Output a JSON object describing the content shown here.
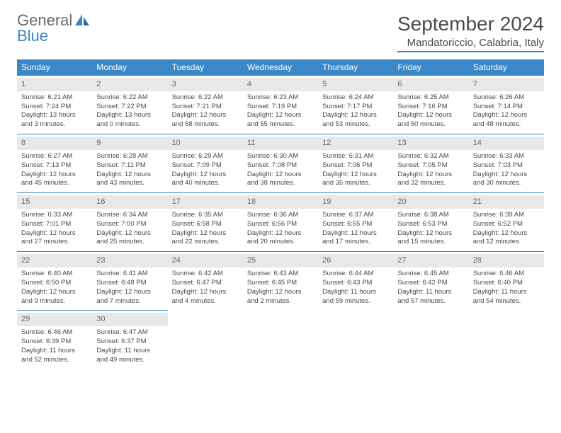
{
  "logo": {
    "text1": "General",
    "text2": "Blue"
  },
  "title": "September 2024",
  "location": "Mandatoriccio, Calabria, Italy",
  "colors": {
    "accent": "#3b87c8",
    "header_bg": "#3b87c8",
    "daynum_bg": "#e8e8e8",
    "text": "#4a4a4a"
  },
  "day_headers": [
    "Sunday",
    "Monday",
    "Tuesday",
    "Wednesday",
    "Thursday",
    "Friday",
    "Saturday"
  ],
  "weeks": [
    [
      {
        "n": "1",
        "sr": "6:21 AM",
        "ss": "7:24 PM",
        "dl": "13 hours and 3 minutes."
      },
      {
        "n": "2",
        "sr": "6:22 AM",
        "ss": "7:22 PM",
        "dl": "13 hours and 0 minutes."
      },
      {
        "n": "3",
        "sr": "6:22 AM",
        "ss": "7:21 PM",
        "dl": "12 hours and 58 minutes."
      },
      {
        "n": "4",
        "sr": "6:23 AM",
        "ss": "7:19 PM",
        "dl": "12 hours and 55 minutes."
      },
      {
        "n": "5",
        "sr": "6:24 AM",
        "ss": "7:17 PM",
        "dl": "12 hours and 53 minutes."
      },
      {
        "n": "6",
        "sr": "6:25 AM",
        "ss": "7:16 PM",
        "dl": "12 hours and 50 minutes."
      },
      {
        "n": "7",
        "sr": "6:26 AM",
        "ss": "7:14 PM",
        "dl": "12 hours and 48 minutes."
      }
    ],
    [
      {
        "n": "8",
        "sr": "6:27 AM",
        "ss": "7:13 PM",
        "dl": "12 hours and 45 minutes."
      },
      {
        "n": "9",
        "sr": "6:28 AM",
        "ss": "7:11 PM",
        "dl": "12 hours and 43 minutes."
      },
      {
        "n": "10",
        "sr": "6:29 AM",
        "ss": "7:09 PM",
        "dl": "12 hours and 40 minutes."
      },
      {
        "n": "11",
        "sr": "6:30 AM",
        "ss": "7:08 PM",
        "dl": "12 hours and 38 minutes."
      },
      {
        "n": "12",
        "sr": "6:31 AM",
        "ss": "7:06 PM",
        "dl": "12 hours and 35 minutes."
      },
      {
        "n": "13",
        "sr": "6:32 AM",
        "ss": "7:05 PM",
        "dl": "12 hours and 32 minutes."
      },
      {
        "n": "14",
        "sr": "6:33 AM",
        "ss": "7:03 PM",
        "dl": "12 hours and 30 minutes."
      }
    ],
    [
      {
        "n": "15",
        "sr": "6:33 AM",
        "ss": "7:01 PM",
        "dl": "12 hours and 27 minutes."
      },
      {
        "n": "16",
        "sr": "6:34 AM",
        "ss": "7:00 PM",
        "dl": "12 hours and 25 minutes."
      },
      {
        "n": "17",
        "sr": "6:35 AM",
        "ss": "6:58 PM",
        "dl": "12 hours and 22 minutes."
      },
      {
        "n": "18",
        "sr": "6:36 AM",
        "ss": "6:56 PM",
        "dl": "12 hours and 20 minutes."
      },
      {
        "n": "19",
        "sr": "6:37 AM",
        "ss": "6:55 PM",
        "dl": "12 hours and 17 minutes."
      },
      {
        "n": "20",
        "sr": "6:38 AM",
        "ss": "6:53 PM",
        "dl": "12 hours and 15 minutes."
      },
      {
        "n": "21",
        "sr": "6:39 AM",
        "ss": "6:52 PM",
        "dl": "12 hours and 12 minutes."
      }
    ],
    [
      {
        "n": "22",
        "sr": "6:40 AM",
        "ss": "6:50 PM",
        "dl": "12 hours and 9 minutes."
      },
      {
        "n": "23",
        "sr": "6:41 AM",
        "ss": "6:48 PM",
        "dl": "12 hours and 7 minutes."
      },
      {
        "n": "24",
        "sr": "6:42 AM",
        "ss": "6:47 PM",
        "dl": "12 hours and 4 minutes."
      },
      {
        "n": "25",
        "sr": "6:43 AM",
        "ss": "6:45 PM",
        "dl": "12 hours and 2 minutes."
      },
      {
        "n": "26",
        "sr": "6:44 AM",
        "ss": "6:43 PM",
        "dl": "11 hours and 59 minutes."
      },
      {
        "n": "27",
        "sr": "6:45 AM",
        "ss": "6:42 PM",
        "dl": "11 hours and 57 minutes."
      },
      {
        "n": "28",
        "sr": "6:46 AM",
        "ss": "6:40 PM",
        "dl": "11 hours and 54 minutes."
      }
    ],
    [
      {
        "n": "29",
        "sr": "6:46 AM",
        "ss": "6:39 PM",
        "dl": "11 hours and 52 minutes."
      },
      {
        "n": "30",
        "sr": "6:47 AM",
        "ss": "6:37 PM",
        "dl": "11 hours and 49 minutes."
      },
      null,
      null,
      null,
      null,
      null
    ]
  ],
  "labels": {
    "sunrise": "Sunrise:",
    "sunset": "Sunset:",
    "daylight": "Daylight:"
  }
}
